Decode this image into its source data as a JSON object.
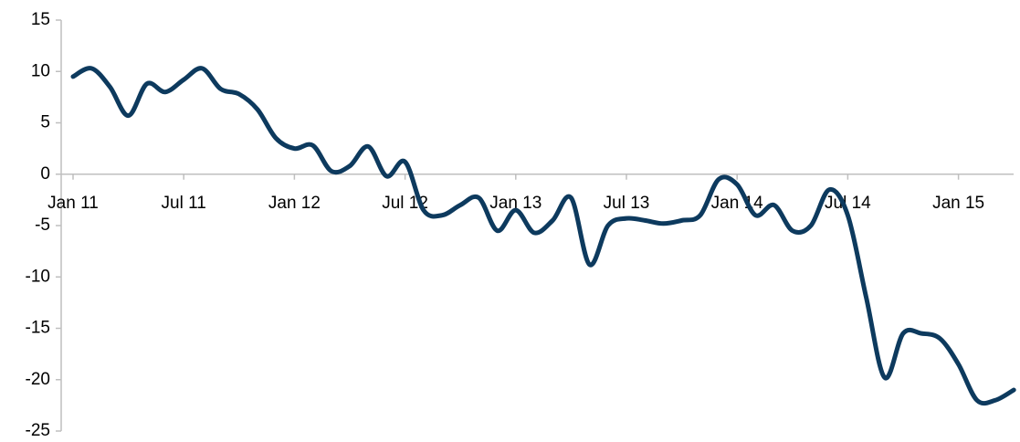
{
  "chart_data": {
    "type": "line",
    "categories": [
      "Jan 11",
      null,
      null,
      null,
      null,
      null,
      "Jul 11",
      null,
      null,
      null,
      null,
      null,
      "Jan 12",
      null,
      null,
      null,
      null,
      null,
      "Jul 12",
      null,
      null,
      null,
      null,
      null,
      "Jan 13",
      null,
      null,
      null,
      null,
      null,
      "Jul 13",
      null,
      null,
      null,
      null,
      null,
      "Jan 14",
      null,
      null,
      null,
      null,
      null,
      "Jul 14",
      null,
      null,
      null,
      null,
      null,
      "Jan 15",
      null,
      null,
      null
    ],
    "series": [
      {
        "color": "#0d3a5e",
        "values": [
          9.5,
          10.3,
          8.5,
          5.7,
          8.8,
          8,
          9.2,
          10.3,
          8.3,
          7.8,
          6.3,
          3.5,
          2.5,
          2.8,
          0.3,
          0.8,
          2.7,
          -0.2,
          1.2,
          -3.5,
          -4,
          -3,
          -2.3,
          -5.5,
          -3.5,
          -5.7,
          -4.5,
          -2.3,
          -8.8,
          -5,
          -4.3,
          -4.5,
          -4.8,
          -4.5,
          -4,
          -0.5,
          -1,
          -4,
          -3,
          -5.5,
          -5,
          -1.5,
          -4,
          -12,
          -19.8,
          -15.5,
          -15.5,
          -16,
          -18.5,
          -22,
          -22,
          -21
        ]
      }
    ],
    "ylim": [
      -25,
      15
    ],
    "yticks": [
      -25,
      -20,
      -15,
      -10,
      -5,
      0,
      5,
      10,
      15
    ]
  }
}
